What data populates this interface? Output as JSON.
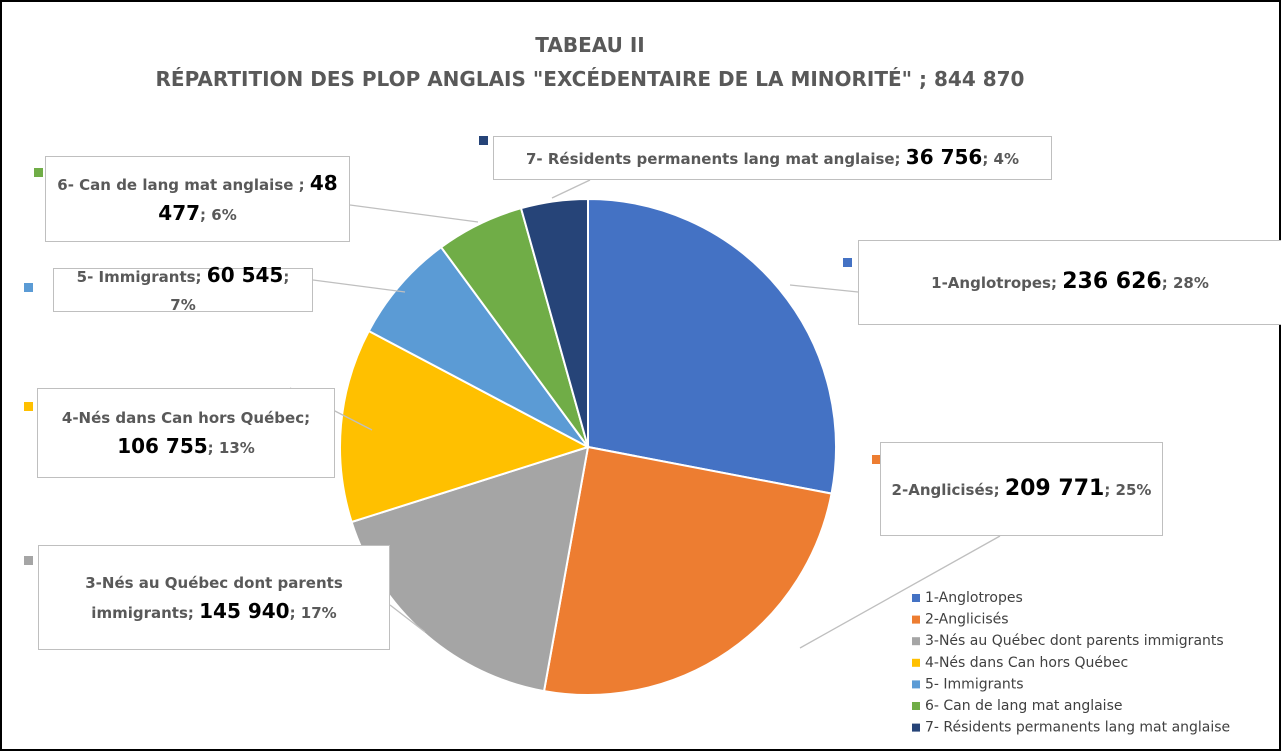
{
  "chart_data": {
    "type": "pie",
    "title": "TABEAU II",
    "subtitle": "RÉPARTITION DES PLOP ANGLAIS \"EXCÉDENTAIRE DE LA MINORITÉ\" ; 844 870",
    "categories": [
      "1-Anglotropes",
      "2-Anglicisés",
      "3-Nés au Québec dont parents immigrants",
      "4-Nés dans Can hors Québec",
      "5- Immigrants",
      "6- Can de lang mat anglaise",
      "7- Résidents permanents lang mat anglaise"
    ],
    "values": [
      236626,
      209771,
      145940,
      106755,
      60545,
      48477,
      36756
    ],
    "value_labels": [
      "236 626",
      "209 771",
      "145 940",
      "106 755",
      "60 545",
      "48 477",
      "36 756"
    ],
    "label_names": [
      "1-Anglotropes; ",
      "2-Anglicisés; ",
      "3-Nés au Québec dont parents immigrants; ",
      "4-Nés dans Can hors Québec; ",
      "5- Immigrants; ",
      "6- Can de lang mat anglaise ; ",
      "7- Résidents permanents lang mat anglaise; "
    ],
    "percent_labels": [
      "; 28%",
      "; 25%",
      "; 17%",
      "; 13%",
      "; 7%",
      "; 6%",
      "; 4%"
    ],
    "colors": [
      "#4472c4",
      "#ed7d31",
      "#a5a5a5",
      "#ffc000",
      "#5b9bd5",
      "#70ad47",
      "#264478"
    ],
    "legend": "bottom-right"
  }
}
